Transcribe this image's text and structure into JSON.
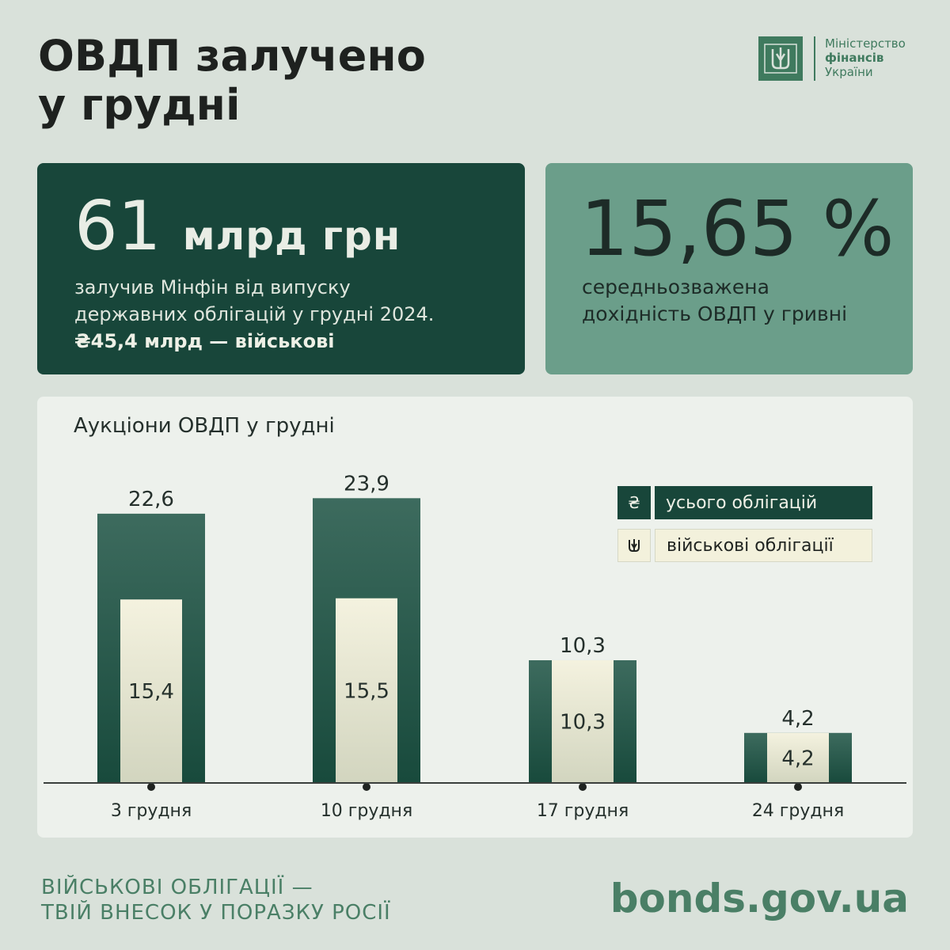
{
  "title": {
    "line1": "ОВДП залучено",
    "line2": "у грудні"
  },
  "logo": {
    "line1": "Міністерство",
    "line2": "фінансів",
    "line3": "України"
  },
  "card_total": {
    "amount": "61",
    "unit": "млрд грн",
    "line1": "залучив Мінфін від випуску",
    "line2": "державних облігацій у грудні 2024.",
    "line3": "₴45,4 млрд — військові"
  },
  "card_yield": {
    "value": "15,65 %",
    "line1": "середньозважена",
    "line2": "дохідність ОВДП у гривні"
  },
  "legend": {
    "total_icon": "₴",
    "total_label": "усього облігацій",
    "mil_icon": "trident-icon",
    "mil_label": "військові облігації"
  },
  "footer": {
    "slogan_line1": "ВІЙСЬКОВІ ОБЛІГАЦІЇ —",
    "slogan_line2": "ТВІЙ ВНЕСОК У ПОРАЗКУ РОСІЇ",
    "site": "bonds.gov.ua"
  },
  "colors": {
    "dark_green": "#18463a",
    "bar_total_top": "#3d6b5e",
    "bar_total_bottom": "#184a3c",
    "bar_military": "#f3f1dc",
    "accent_green": "#4a7f66"
  },
  "chart_data": {
    "type": "bar",
    "title": "Аукціони ОВДП у грудні",
    "categories": [
      "3 грудня",
      "10 грудня",
      "17 грудня",
      "24 грудня"
    ],
    "series": [
      {
        "name": "усього облігацій",
        "values": [
          22.6,
          23.9,
          10.3,
          4.2
        ],
        "labels": [
          "22,6",
          "23,9",
          "10,3",
          "4,2"
        ]
      },
      {
        "name": "військові облігації",
        "values": [
          15.4,
          15.5,
          10.3,
          4.2
        ],
        "labels": [
          "15,4",
          "15,5",
          "10,3",
          "4,2"
        ]
      }
    ]
  }
}
